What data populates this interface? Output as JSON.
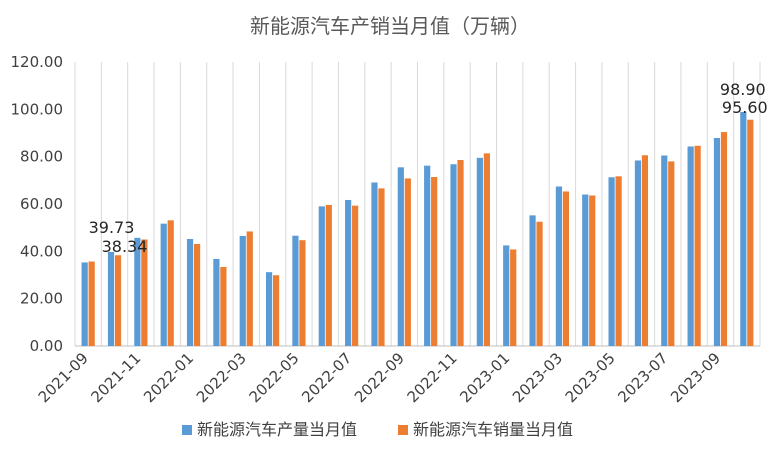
{
  "chart_data": {
    "type": "bar",
    "title": "新能源汽车产销当月值（万辆）",
    "ylim": [
      0,
      120
    ],
    "yticks": [
      "0.00",
      "20.00",
      "40.00",
      "60.00",
      "80.00",
      "100.00",
      "120.00"
    ],
    "grid": "vertical",
    "legend_position": "bottom",
    "colors": {
      "production": "#5B9BD5",
      "sales": "#ED7D31"
    },
    "categories": [
      "2021-09",
      "2021-10",
      "2021-11",
      "2021-12",
      "2022-01",
      "2022-02",
      "2022-03",
      "2022-04",
      "2022-05",
      "2022-06",
      "2022-07",
      "2022-08",
      "2022-09",
      "2022-10",
      "2022-11",
      "2022-12",
      "2023-01",
      "2023-02",
      "2023-03",
      "2023-04",
      "2023-05",
      "2023-06",
      "2023-07",
      "2023-08",
      "2023-09",
      "2023-10"
    ],
    "xtick_labels": [
      "2021-09",
      "2021-11",
      "2022-01",
      "2022-03",
      "2022-05",
      "2022-07",
      "2022-09",
      "2022-11",
      "2023-01",
      "2023-03",
      "2023-05",
      "2023-07",
      "2023-09"
    ],
    "series": [
      {
        "name": "新能源汽车产量当月值",
        "values": [
          35.3,
          39.73,
          45.7,
          51.7,
          45.2,
          36.8,
          46.5,
          31.2,
          46.6,
          59.0,
          61.7,
          69.1,
          75.5,
          76.2,
          76.8,
          79.5,
          42.5,
          55.2,
          67.4,
          64.0,
          71.3,
          78.4,
          80.5,
          84.3,
          87.9,
          98.9
        ],
        "labels": {
          "1": "39.73",
          "25": "98.90"
        }
      },
      {
        "name": "新能源汽车销量当月值",
        "values": [
          35.7,
          38.34,
          45.0,
          53.1,
          43.1,
          33.4,
          48.4,
          29.9,
          44.7,
          59.6,
          59.3,
          66.6,
          70.8,
          71.4,
          78.6,
          81.4,
          40.8,
          52.5,
          65.3,
          63.6,
          71.7,
          80.6,
          78.0,
          84.6,
          90.4,
          95.6
        ],
        "labels": {
          "1": "38.34",
          "25": "95.60"
        }
      }
    ]
  }
}
